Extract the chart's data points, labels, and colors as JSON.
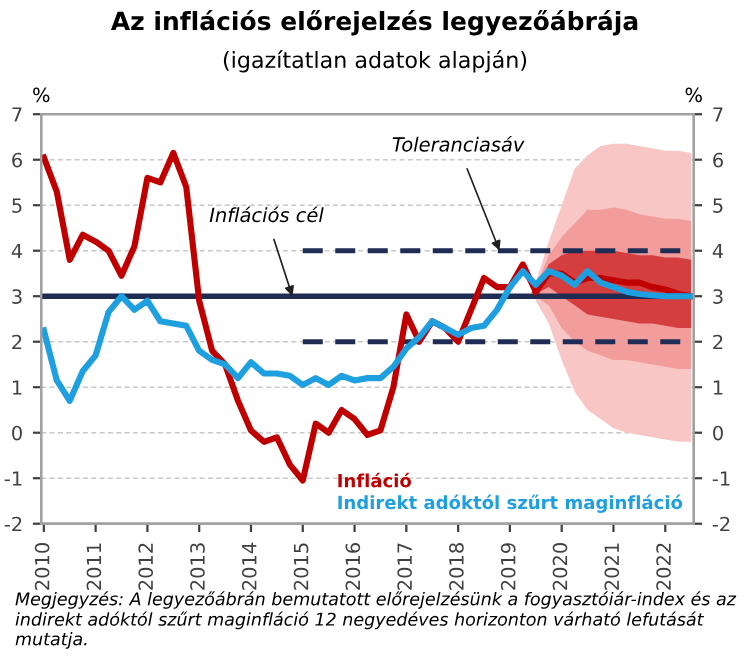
{
  "chart_data": {
    "type": "line",
    "title": "Az inflációs előrejelzés legyezőábrája",
    "subtitle": "(igazítatlan adatok alapján)",
    "ylabel": "%",
    "y2label": "%",
    "x": [
      2010.0,
      2010.25,
      2010.5,
      2010.75,
      2011.0,
      2011.25,
      2011.5,
      2011.75,
      2012.0,
      2012.25,
      2012.5,
      2012.75,
      2013.0,
      2013.25,
      2013.5,
      2013.75,
      2014.0,
      2014.25,
      2014.5,
      2014.75,
      2015.0,
      2015.25,
      2015.5,
      2015.75,
      2016.0,
      2016.25,
      2016.5,
      2016.75,
      2017.0,
      2017.25,
      2017.5,
      2017.75,
      2018.0,
      2018.25,
      2018.5,
      2018.75,
      2019.0,
      2019.25,
      2019.5,
      2019.75,
      2020.0,
      2020.25,
      2020.5,
      2020.75,
      2021.0,
      2021.25,
      2021.5,
      2021.75,
      2022.0,
      2022.25,
      2022.5
    ],
    "series": [
      {
        "type": "line",
        "color": "#f9c6c6",
        "x": [
          2019.5,
          2019.75,
          2020.0,
          2020.25,
          2020.5,
          2020.75,
          2021.0,
          2021.25,
          2021.5,
          2021.75,
          2022.0,
          2022.25,
          2022.5
        ],
        "values": [
          null,
          null,
          null,
          null,
          null,
          null,
          null,
          null,
          null,
          null,
          null,
          null,
          null
        ],
        "lower": [
          2.9,
          2.4,
          1.6,
          0.9,
          0.5,
          0.3,
          0.1,
          0.0,
          -0.05,
          -0.1,
          -0.15,
          -0.2,
          -0.2
        ],
        "upper": [
          3.3,
          4.2,
          5.0,
          5.8,
          6.1,
          6.3,
          6.35,
          6.35,
          6.3,
          6.25,
          6.2,
          6.2,
          6.15
        ]
      },
      {
        "type": "line",
        "color": "#f39c9c",
        "x": [
          2019.5,
          2019.75,
          2020.0,
          2020.25,
          2020.5,
          2020.75,
          2021.0,
          2021.25,
          2021.5,
          2021.75,
          2022.0,
          2022.25,
          2022.5
        ],
        "values": [
          null,
          null,
          null,
          null,
          null,
          null,
          null,
          null,
          null,
          null,
          null,
          null,
          null
        ],
        "lower": [
          3.0,
          2.8,
          2.3,
          2.0,
          1.8,
          1.7,
          1.6,
          1.6,
          1.55,
          1.5,
          1.45,
          1.4,
          1.4
        ],
        "upper": [
          3.2,
          3.9,
          4.3,
          4.6,
          4.9,
          4.9,
          4.95,
          4.9,
          4.8,
          4.75,
          4.7,
          4.7,
          4.65
        ]
      },
      {
        "type": "line",
        "color": "#c00000",
        "x": [
          2019.5,
          2019.75,
          2020.0,
          2020.25,
          2020.5,
          2020.75,
          2021.0,
          2021.25,
          2021.5,
          2021.75,
          2022.0,
          2022.25,
          2022.5
        ],
        "values": [
          3.1,
          3.5,
          3.5,
          3.3,
          3.4,
          3.4,
          3.35,
          3.3,
          3.3,
          3.2,
          3.15,
          3.05,
          3.0
        ],
        "lower": [
          3.05,
          3.2,
          3.0,
          2.8,
          2.6,
          2.55,
          2.5,
          2.45,
          2.4,
          2.4,
          2.35,
          2.3,
          2.3
        ],
        "upper": [
          3.15,
          3.7,
          3.9,
          4.0,
          4.0,
          4.0,
          4.0,
          3.95,
          3.9,
          3.9,
          3.85,
          3.85,
          3.8
        ]
      },
      {
        "type": "line",
        "color": "#1f2d55",
        "line_style": "dashed",
        "x": [
          2015.0,
          2022.5
        ],
        "values": [
          4,
          4
        ]
      },
      {
        "type": "line",
        "color": "#1f2d55",
        "line_style": "dashed",
        "x": [
          2015.0,
          2022.5
        ],
        "values": [
          2,
          2
        ]
      },
      {
        "name": "Infláció",
        "color": "#c00000",
        "x": [
          2010.0,
          2010.25,
          2010.5,
          2010.75,
          2011.0,
          2011.25,
          2011.5,
          2011.75,
          2012.0,
          2012.25,
          2012.5,
          2012.75,
          2013.0,
          2013.25,
          2013.5,
          2013.75,
          2014.0,
          2014.25,
          2014.5,
          2014.75,
          2015.0,
          2015.25,
          2015.5,
          2015.75,
          2016.0,
          2016.25,
          2016.5,
          2016.75,
          2017.0,
          2017.25,
          2017.5,
          2017.75,
          2018.0,
          2018.25,
          2018.5,
          2018.75,
          2019.0,
          2019.25,
          2019.5
        ],
        "values": [
          6.05,
          5.3,
          3.8,
          4.35,
          4.2,
          4.0,
          3.45,
          4.1,
          5.6,
          5.5,
          6.15,
          5.4,
          2.9,
          1.8,
          1.5,
          0.7,
          0.05,
          -0.2,
          -0.1,
          -0.7,
          -1.05,
          0.2,
          0.0,
          0.5,
          0.3,
          -0.05,
          0.05,
          1.0,
          2.6,
          2.0,
          2.45,
          2.3,
          2.0,
          2.7,
          3.4,
          3.2,
          3.2,
          3.7,
          3.1
        ]
      },
      {
        "name": "Indirekt adóktól szűrt maginfláció",
        "color": "#1e9fe0",
        "values": [
          2.25,
          1.15,
          0.7,
          1.35,
          1.7,
          2.65,
          3.0,
          2.7,
          2.9,
          2.45,
          2.4,
          2.35,
          1.8,
          1.6,
          1.5,
          1.2,
          1.55,
          1.3,
          1.3,
          1.25,
          1.05,
          1.2,
          1.05,
          1.25,
          1.15,
          1.2,
          1.2,
          1.45,
          1.85,
          2.1,
          2.45,
          2.3,
          2.15,
          2.3,
          2.35,
          2.7,
          3.2,
          3.55,
          3.25,
          3.55,
          3.45,
          3.25,
          3.55,
          3.3,
          3.2,
          3.1,
          3.05,
          3.02,
          3.0,
          3.0,
          3.0
        ]
      }
    ],
    "ref_lines": [
      {
        "axis": "y",
        "value": 3,
        "color": "#1f2d55",
        "line_style": "solid"
      }
    ],
    "annotations": [
      {
        "text": "Inflációs cél",
        "x": 2014.8,
        "y": 3
      },
      {
        "text": "Toleranciasáv",
        "x": 2018.8,
        "y": 4
      },
      "Megjegyzés: A legyezőábrán bemutatott előrejelzésünk a fogyasztóiár-index és az indirekt adóktól szűrt maginfláció 12 negyedéves horizonton várható lefutását mutatja."
    ],
    "xlim": [
      2009.95,
      2022.55
    ],
    "xticks": [
      2010,
      2011,
      2012,
      2013,
      2014,
      2015,
      2016,
      2017,
      2018,
      2019,
      2020,
      2021,
      2022
    ],
    "ylim": [
      -2,
      7
    ],
    "yticks": [
      -2,
      -1,
      0,
      1,
      2,
      3,
      4,
      5,
      6,
      7
    ],
    "y2lim": [
      -2,
      7
    ],
    "y2ticks": [
      -2,
      -1,
      0,
      1,
      2,
      3,
      4,
      5,
      6,
      7
    ],
    "grid": "y",
    "legend": "bottom right",
    "marker": "none",
    "line_style": "solid"
  }
}
